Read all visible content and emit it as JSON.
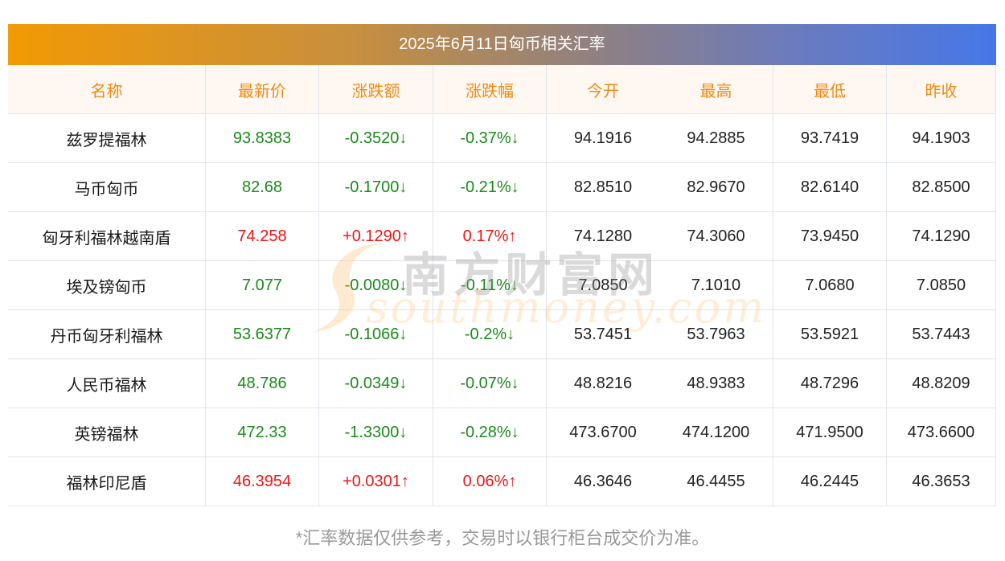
{
  "title": "2025年6月11日匈币相关汇率",
  "columns": [
    "名称",
    "最新价",
    "涨跌额",
    "涨跌幅",
    "今开",
    "最高",
    "最低",
    "昨收"
  ],
  "rows": [
    {
      "name": "兹罗提福林",
      "latest": "93.8383",
      "change": "-0.3520↓",
      "pct": "-0.37%↓",
      "open": "94.1916",
      "high": "94.2885",
      "low": "93.7419",
      "prev": "94.1903",
      "dir": "down"
    },
    {
      "name": "马币匈币",
      "latest": "82.68",
      "change": "-0.1700↓",
      "pct": "-0.21%↓",
      "open": "82.8510",
      "high": "82.9670",
      "low": "82.6140",
      "prev": "82.8500",
      "dir": "down"
    },
    {
      "name": "匈牙利福林越南盾",
      "latest": "74.258",
      "change": "+0.1290↑",
      "pct": "0.17%↑",
      "open": "74.1280",
      "high": "74.3060",
      "low": "73.9450",
      "prev": "74.1290",
      "dir": "up"
    },
    {
      "name": "埃及镑匈币",
      "latest": "7.077",
      "change": "-0.0080↓",
      "pct": "-0.11%↓",
      "open": "7.0850",
      "high": "7.1010",
      "low": "7.0680",
      "prev": "7.0850",
      "dir": "down"
    },
    {
      "name": "丹币匈牙利福林",
      "latest": "53.6377",
      "change": "-0.1066↓",
      "pct": "-0.2%↓",
      "open": "53.7451",
      "high": "53.7963",
      "low": "53.5921",
      "prev": "53.7443",
      "dir": "down"
    },
    {
      "name": "人民币福林",
      "latest": "48.786",
      "change": "-0.0349↓",
      "pct": "-0.07%↓",
      "open": "48.8216",
      "high": "48.9383",
      "low": "48.7296",
      "prev": "48.8209",
      "dir": "down"
    },
    {
      "name": "英镑福林",
      "latest": "472.33",
      "change": "-1.3300↓",
      "pct": "-0.28%↓",
      "open": "473.6700",
      "high": "474.1200",
      "low": "471.9500",
      "prev": "473.6600",
      "dir": "down"
    },
    {
      "name": "福林印尼盾",
      "latest": "46.3954",
      "change": "+0.0301↑",
      "pct": "0.06%↑",
      "open": "46.3646",
      "high": "46.4455",
      "low": "46.2445",
      "prev": "46.3653",
      "dir": "up"
    }
  ],
  "note": "*汇率数据仅供参考，交易时以银行柜台成交价为准。",
  "watermark": {
    "cn": "南方财富网",
    "en": "southmoney.com"
  },
  "colors": {
    "up": "#f01414",
    "down": "#1a8a1a",
    "header_text": "#f08a12",
    "gradient_start": "#f39a04",
    "gradient_end": "#4677e8"
  }
}
